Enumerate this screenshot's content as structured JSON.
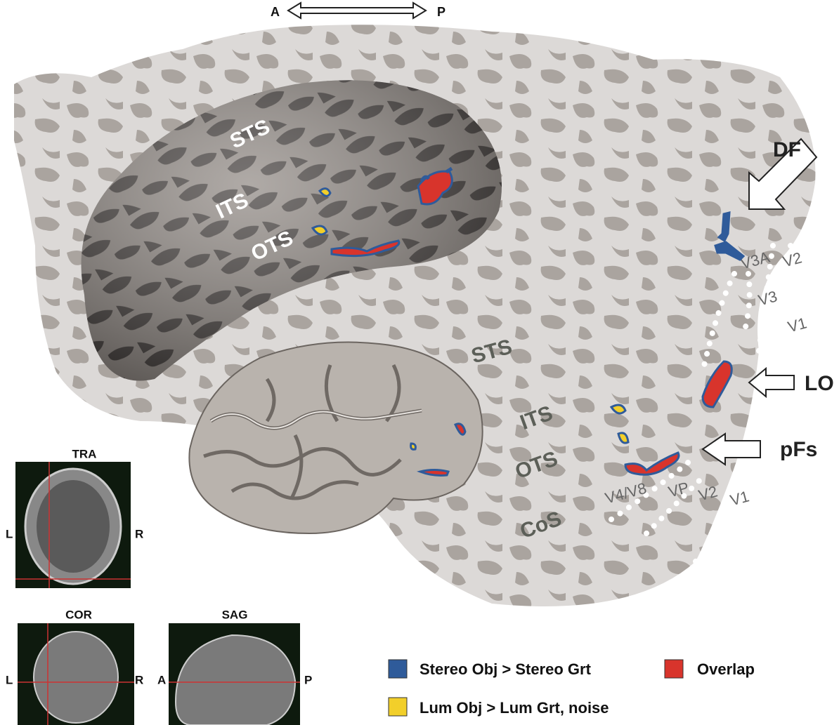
{
  "orientation": {
    "anterior": "A",
    "posterior": "P"
  },
  "inflated_labels": [
    "STS",
    "ITS",
    "OTS"
  ],
  "flat_labels": [
    "STS",
    "ITS",
    "OTS",
    "CoS"
  ],
  "regions": [
    "DF",
    "LO",
    "pFs"
  ],
  "visual_areas": [
    "V3A",
    "V2",
    "V3",
    "V1",
    "V4/V8",
    "VP",
    "V2",
    "V1"
  ],
  "slices": [
    {
      "title": "TRA",
      "left": "L",
      "right": "R"
    },
    {
      "title": "COR",
      "left": "L",
      "right": "R"
    },
    {
      "title": "SAG",
      "left": "A",
      "right": "P"
    }
  ],
  "legend": [
    {
      "label": "Stereo Obj > Stereo Grt",
      "color": "#2f5b9a"
    },
    {
      "label": "Overlap",
      "color": "#d8342c"
    },
    {
      "label": "Lum Obj > Lum Grt, noise",
      "color": "#f2cf2a"
    }
  ]
}
